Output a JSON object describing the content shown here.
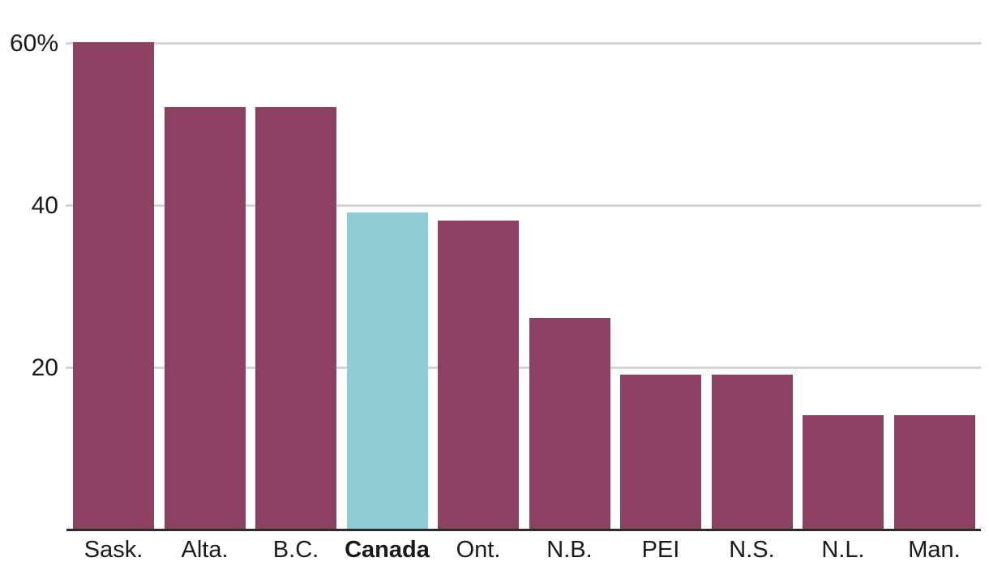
{
  "chart_data": {
    "type": "bar",
    "categories": [
      "Sask.",
      "Alta.",
      "B.C.",
      "Canada",
      "Ont.",
      "N.B.",
      "PEI",
      "N.S.",
      "N.L.",
      "Man."
    ],
    "values": [
      60,
      52,
      52,
      39,
      38,
      26,
      19,
      19,
      14,
      14
    ],
    "highlight_category": "Canada",
    "yticks": [
      {
        "value": 60,
        "label": "60%"
      },
      {
        "value": 40,
        "label": "40"
      },
      {
        "value": 20,
        "label": "20"
      }
    ],
    "ylim": [
      0,
      60
    ],
    "grid": true,
    "legend_position": "none",
    "colors": {
      "bar": "#8C4062",
      "highlight_bar": "#8FCCD6",
      "gridline": "#D4D4D4",
      "axis_line": "#2B2B2B",
      "text": "#1A1A1A",
      "background": "#FFFFFF"
    }
  }
}
